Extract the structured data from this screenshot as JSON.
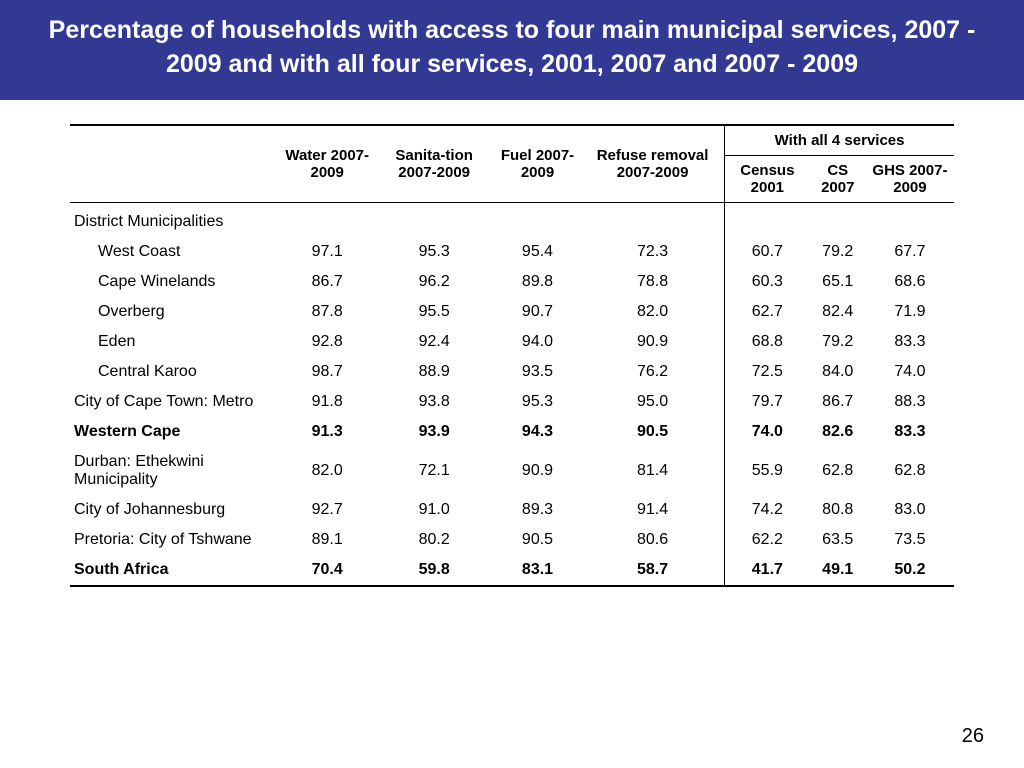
{
  "title": "Percentage of households with access to four main municipal services, 2007 - 2009 and with all four services, 2001, 2007 and 2007 - 2009",
  "page_number": "26",
  "colors": {
    "header_bg": "#323993",
    "header_text": "#ffffff",
    "body_text": "#000000",
    "rule": "#000000"
  },
  "columns": {
    "blank": "",
    "water": "Water 2007-2009",
    "sanitation": "Sanita-tion 2007-2009",
    "fuel": "Fuel 2007-2009",
    "refuse": "Refuse removal 2007-2009",
    "all4_group": "With all 4 services",
    "census2001": "Census 2001",
    "cs2007": "CS 2007",
    "ghs": "GHS 2007-2009"
  },
  "section_header": "District Municipalities",
  "rows": [
    {
      "label": "West Coast",
      "indent": true,
      "bold": false,
      "water": "97.1",
      "sani": "95.3",
      "fuel": "95.4",
      "refuse": "72.3",
      "c2001": "60.7",
      "cs2007": "79.2",
      "ghs": "67.7"
    },
    {
      "label": "Cape Winelands",
      "indent": true,
      "bold": false,
      "water": "86.7",
      "sani": "96.2",
      "fuel": "89.8",
      "refuse": "78.8",
      "c2001": "60.3",
      "cs2007": "65.1",
      "ghs": "68.6"
    },
    {
      "label": "Overberg",
      "indent": true,
      "bold": false,
      "water": "87.8",
      "sani": "95.5",
      "fuel": "90.7",
      "refuse": "82.0",
      "c2001": "62.7",
      "cs2007": "82.4",
      "ghs": "71.9"
    },
    {
      "label": "Eden",
      "indent": true,
      "bold": false,
      "water": "92.8",
      "sani": "92.4",
      "fuel": "94.0",
      "refuse": "90.9",
      "c2001": "68.8",
      "cs2007": "79.2",
      "ghs": "83.3"
    },
    {
      "label": "Central Karoo",
      "indent": true,
      "bold": false,
      "water": "98.7",
      "sani": "88.9",
      "fuel": "93.5",
      "refuse": "76.2",
      "c2001": "72.5",
      "cs2007": "84.0",
      "ghs": "74.0"
    },
    {
      "label": "City of Cape Town: Metro",
      "indent": false,
      "bold": false,
      "water": "91.8",
      "sani": "93.8",
      "fuel": "95.3",
      "refuse": "95.0",
      "c2001": "79.7",
      "cs2007": "86.7",
      "ghs": "88.3"
    },
    {
      "label": "Western Cape",
      "indent": false,
      "bold": true,
      "water": "91.3",
      "sani": "93.9",
      "fuel": "94.3",
      "refuse": "90.5",
      "c2001": "74.0",
      "cs2007": "82.6",
      "ghs": "83.3"
    },
    {
      "label": "Durban: Ethekwini Municipality",
      "indent": false,
      "bold": false,
      "water": "82.0",
      "sani": "72.1",
      "fuel": "90.9",
      "refuse": "81.4",
      "c2001": "55.9",
      "cs2007": "62.8",
      "ghs": "62.8"
    },
    {
      "label": "City of Johannesburg",
      "indent": false,
      "bold": false,
      "water": "92.7",
      "sani": "91.0",
      "fuel": "89.3",
      "refuse": "91.4",
      "c2001": "74.2",
      "cs2007": "80.8",
      "ghs": "83.0"
    },
    {
      "label": "Pretoria: City of Tshwane",
      "indent": false,
      "bold": false,
      "water": "89.1",
      "sani": "80.2",
      "fuel": "90.5",
      "refuse": "80.6",
      "c2001": "62.2",
      "cs2007": "63.5",
      "ghs": "73.5"
    },
    {
      "label": "South Africa",
      "indent": false,
      "bold": true,
      "water": "70.4",
      "sani": "59.8",
      "fuel": "83.1",
      "refuse": "58.7",
      "c2001": "41.7",
      "cs2007": "49.1",
      "ghs": "50.2"
    }
  ]
}
